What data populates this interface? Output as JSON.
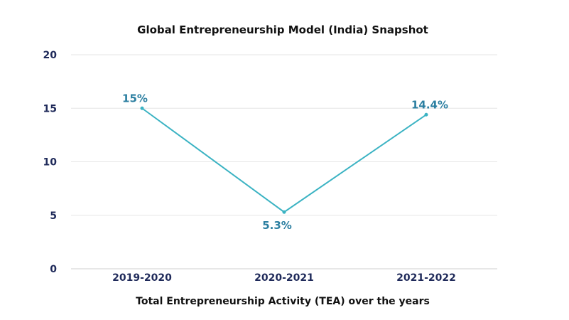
{
  "chart_data": {
    "type": "line",
    "title": "Global Entrepreneurship Model (India) Snapshot",
    "xlabel": "Total Entrepreneurship Activity (TEA) over the years",
    "ylabel": "",
    "categories": [
      "2019-2020",
      "2020-2021",
      "2021-2022"
    ],
    "series": [
      {
        "values": [
          15,
          5.3,
          14.4
        ],
        "data_labels": [
          "15%",
          "5.3%",
          "14.4%"
        ]
      }
    ],
    "ylim": [
      0,
      20
    ],
    "yticks": [
      "0",
      "5",
      "10",
      "15",
      "20"
    ],
    "grid": true,
    "legend": "none",
    "colors": {
      "line": "#3bb3c3",
      "data_label": "#2c7fa1",
      "tick": "#1f2a5a",
      "grid": "#e6e6e6"
    }
  }
}
